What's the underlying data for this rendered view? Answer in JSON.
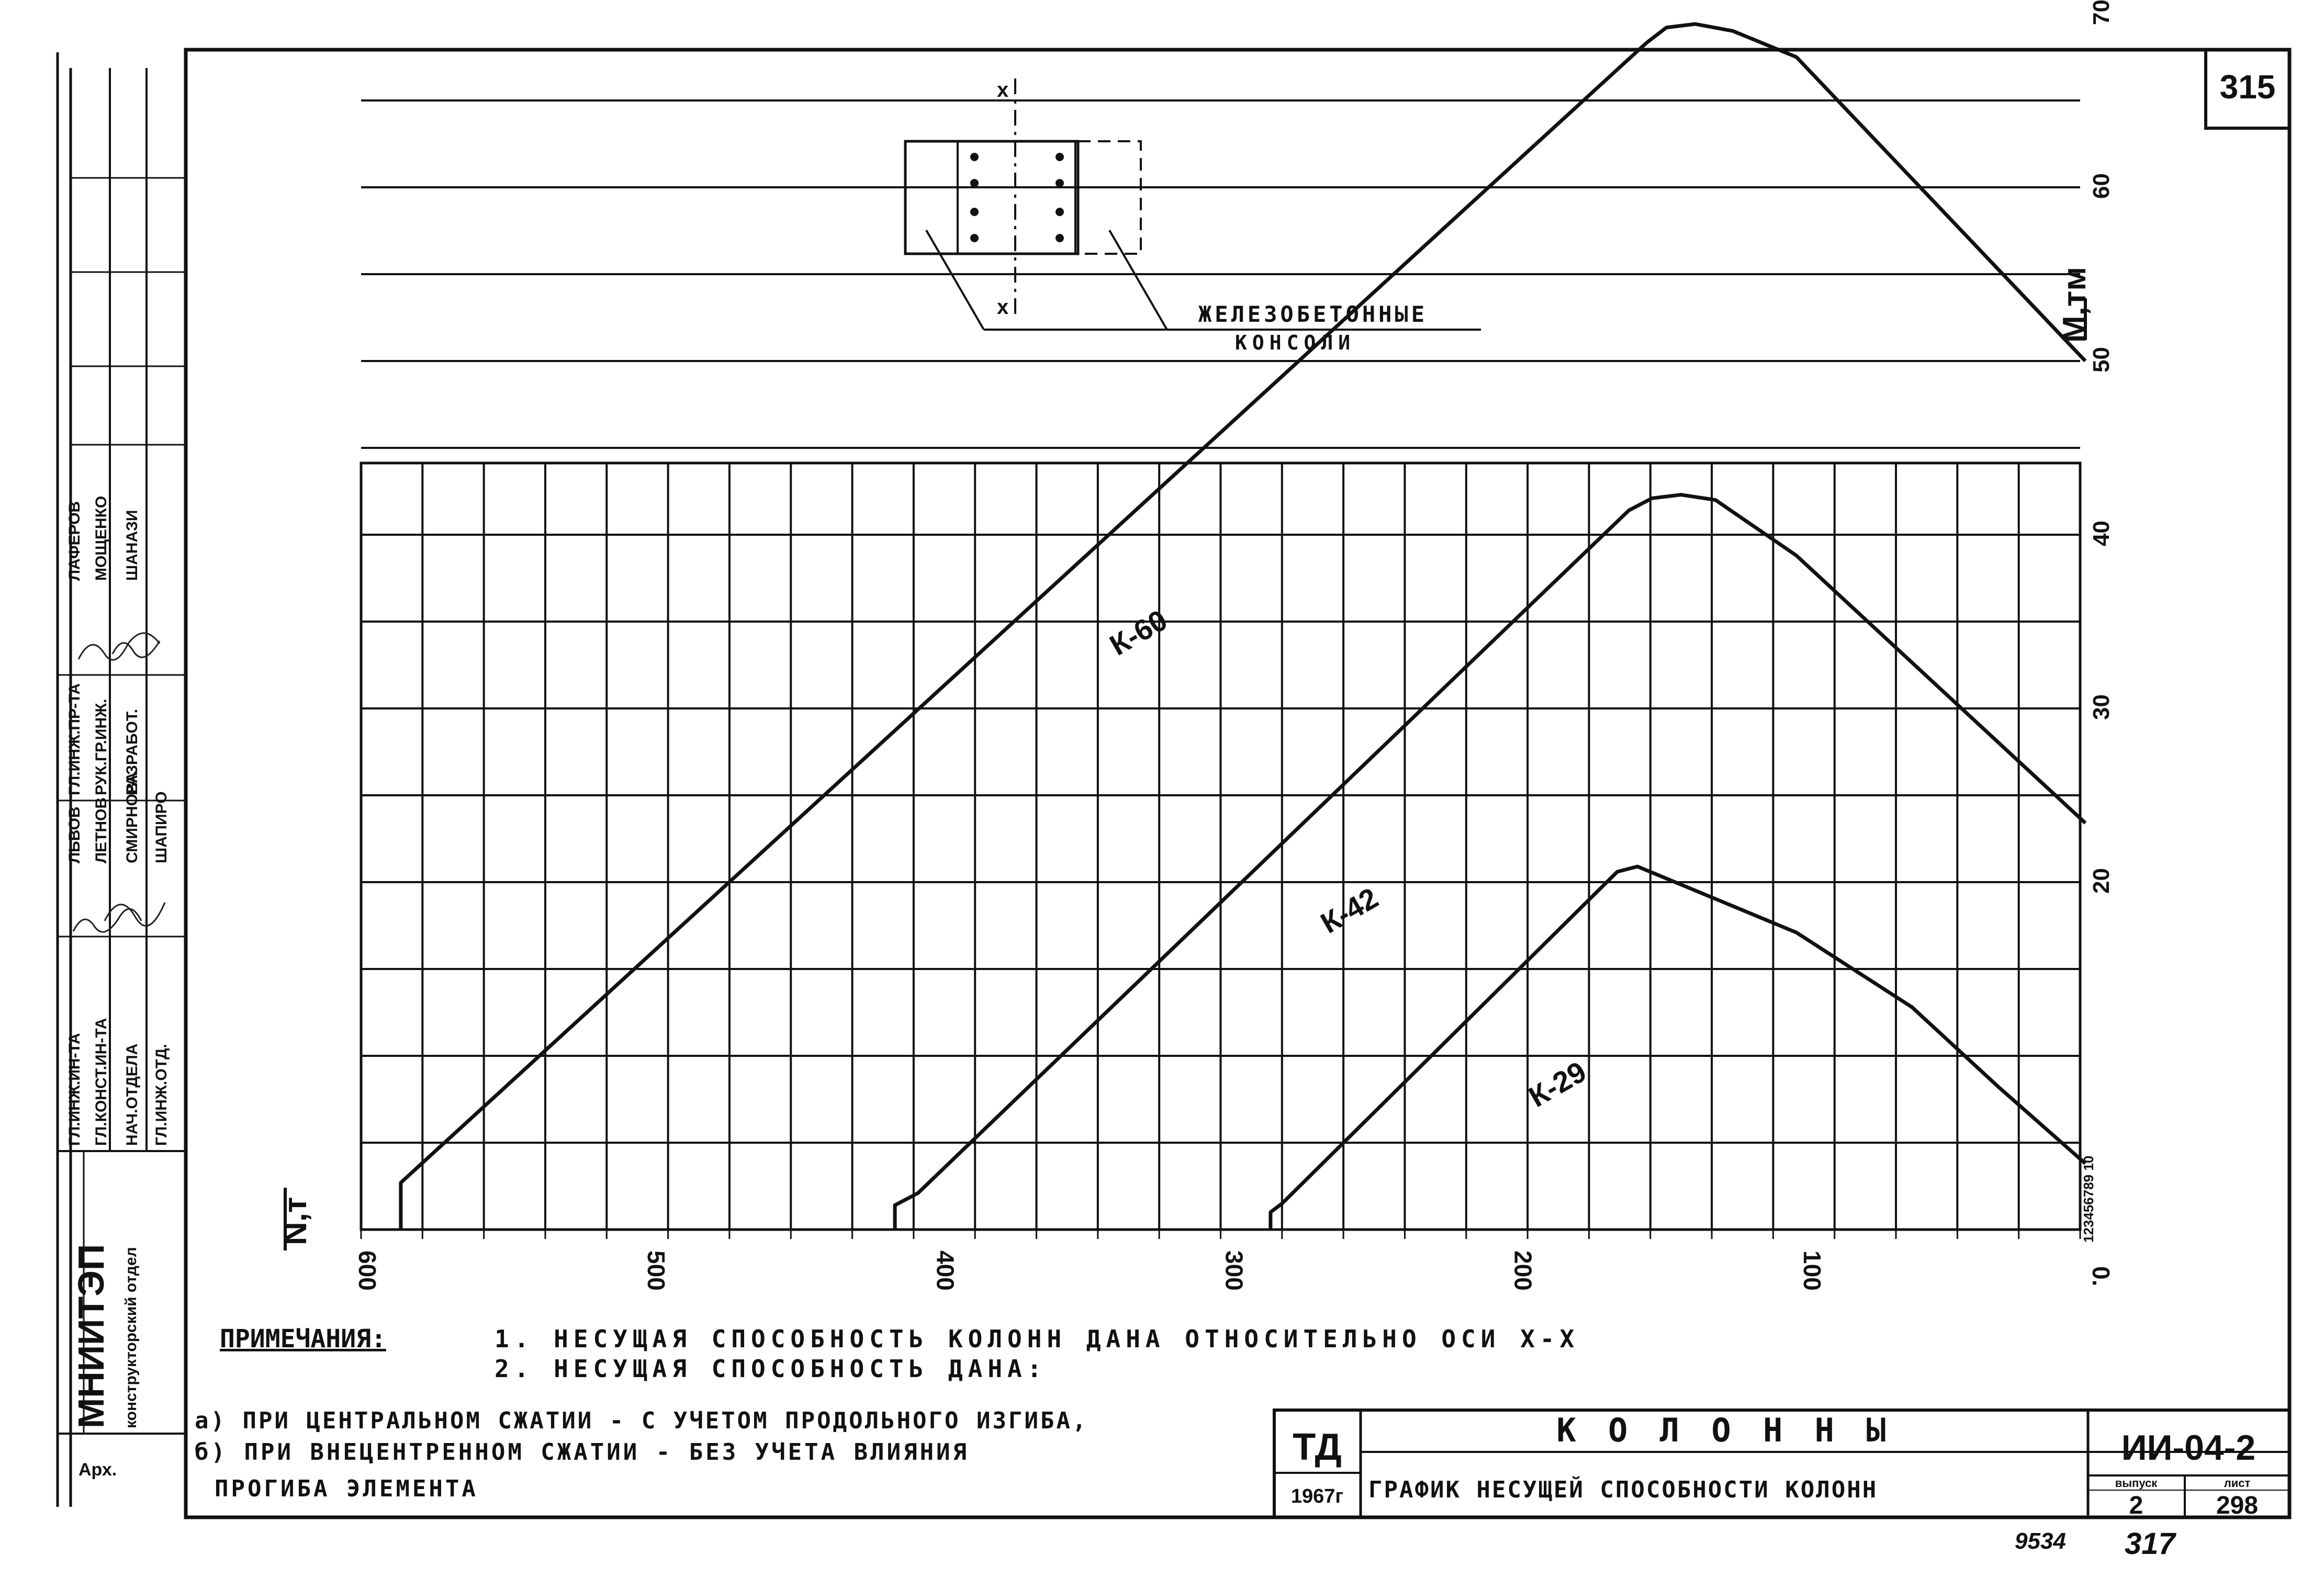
{
  "sheet": {
    "page_number": "315",
    "bottom_numbers": [
      "9534",
      "317"
    ]
  },
  "title_block": {
    "org": "ТД",
    "year": "1967г",
    "title": "К О Л О Н Н Ы",
    "subtitle": "ГРАФИК НЕСУЩЕЙ СПОСОБНОСТИ КОЛОНН",
    "series": "ИИ-04-2",
    "issue_label": "выпуск",
    "issue": "2",
    "sheet_label": "лист",
    "sheet_no": "298"
  },
  "side_stamp": {
    "institute": "МНИИТЭП",
    "department": "конструкторский отдел",
    "archive": "Арх.",
    "roles": [
      "ГЛ.ИНЖ.ИН-ТА",
      "ГЛ.КОНСТ.ИН-ТА",
      "НАЧ.ОТДЕЛА",
      "ГЛ.ИНЖ.ОТД."
    ],
    "names_1": [
      "ЛЬВОВ",
      "ЛЕТНОВ",
      "СМИРНОВА",
      "ШАПИРО"
    ],
    "roles_2": [
      "ГЛ.ИНЖ.ПР-ТА",
      "РУК.ГР.ИНЖ.",
      "РАЗРАБОТ."
    ],
    "names_2": [
      "ЛАФЕРОВ",
      "МОЩЕНКО",
      "ШАНАЗИ"
    ]
  },
  "section": {
    "axis_label_top": "x",
    "axis_label_bottom": "x",
    "label_line1": "ЖЕЛЕЗОБЕТОННЫЕ",
    "label_line2": "КОНСОЛИ"
  },
  "notes": {
    "heading": "ПРИМЕЧАНИЯ:",
    "items": [
      "1. НЕСУЩАЯ СПОСОБНОСТЬ КОЛОНН ДАНА ОТНОСИТЕЛЬНО ОСИ Х-Х",
      "2. НЕСУЩАЯ СПОСОБНОСТЬ ДАНА:",
      "а) ПРИ ЦЕНТРАЛЬНОМ СЖАТИИ - С УЧЕТОМ ПРОДОЛЬНОГО ИЗГИБА,",
      "б) ПРИ ВНЕЦЕНТРЕННОМ СЖАТИИ - БЕЗ УЧЕТА ВЛИЯНИЯ",
      "ПРОГИБА ЭЛЕМЕНТА"
    ]
  },
  "chart_data": {
    "type": "line",
    "title": "",
    "xlabel": "N,т",
    "ylabel": "M,тм",
    "xlim": [
      600,
      0
    ],
    "ylim": [
      0,
      70
    ],
    "x_axis_reversed": true,
    "grid": true,
    "x_ticks": [
      600,
      500,
      400,
      300,
      200,
      100,
      0
    ],
    "x_tick_labels": [
      "600",
      "500",
      "400",
      "300",
      "200",
      "100",
      "0."
    ],
    "y_ticks": [
      20,
      30,
      40,
      50,
      60,
      70
    ],
    "y_tick_labels": [
      "20",
      "30",
      "40",
      "50",
      "60",
      "70"
    ],
    "y_minor_label": "123456789 10",
    "series": [
      {
        "name": "К-60",
        "points": [
          [
            583,
            0
          ],
          [
            583,
            2.7
          ],
          [
            152,
            68.3
          ],
          [
            145,
            69.2
          ],
          [
            135,
            69.4
          ],
          [
            122,
            69.0
          ],
          [
            100,
            67.5
          ],
          [
            0,
            50.0
          ]
        ]
      },
      {
        "name": "К-42",
        "points": [
          [
            412,
            0
          ],
          [
            412,
            1.4
          ],
          [
            404,
            2.1
          ],
          [
            158,
            41.4
          ],
          [
            150,
            42.1
          ],
          [
            140,
            42.3
          ],
          [
            128,
            42.0
          ],
          [
            100,
            38.8
          ],
          [
            0,
            23.4
          ]
        ]
      },
      {
        "name": "К-29",
        "points": [
          [
            282,
            0
          ],
          [
            282,
            1.0
          ],
          [
            278,
            1.5
          ],
          [
            162,
            20.6
          ],
          [
            155,
            20.9
          ],
          [
            100,
            17.1
          ],
          [
            60,
            12.8
          ],
          [
            30,
            8.2
          ],
          [
            0,
            3.8
          ]
        ]
      }
    ]
  }
}
